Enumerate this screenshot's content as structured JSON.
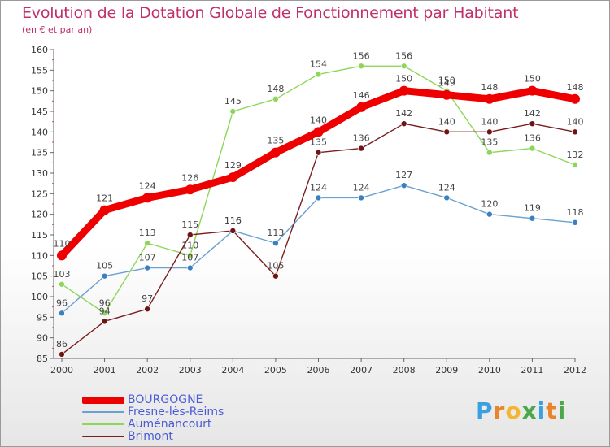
{
  "header": {
    "title": "Evolution de la Dotation Globale de Fonctionnement par Habitant",
    "subtitle": "(en € et par an)"
  },
  "brand": {
    "letters": [
      "P",
      "r",
      "o",
      "x",
      "i",
      "t",
      "i"
    ],
    "colors": [
      "#3aa0e0",
      "#e8842a",
      "#f2b632",
      "#4aa84a",
      "#3aa0e0",
      "#e8842a",
      "#4aa84a"
    ]
  },
  "chart_data": {
    "type": "line",
    "title": "Evolution de la Dotation Globale de Fonctionnement par Habitant",
    "subtitle": "(en € et par an)",
    "xlabel": "",
    "ylabel": "",
    "ylim": [
      85,
      160
    ],
    "yticks": [
      85,
      90,
      95,
      100,
      105,
      110,
      115,
      120,
      125,
      130,
      135,
      140,
      145,
      150,
      155,
      160
    ],
    "grid": false,
    "legend_position": "bottom-left",
    "categories": [
      "2000",
      "2001",
      "2002",
      "2003",
      "2004",
      "2005",
      "2006",
      "2007",
      "2008",
      "2009",
      "2010",
      "2011",
      "2012"
    ],
    "series": [
      {
        "name": "Aumenancourt",
        "label": "Auménancourt",
        "color": "#8ed65a",
        "marker": "#8ed65a",
        "width": 1.4,
        "values": [
          103,
          96,
          113,
          110,
          145,
          148,
          154,
          156,
          156,
          150,
          135,
          136,
          132
        ]
      },
      {
        "name": "Fresne",
        "label": "Fresne-lès-Reims",
        "color": "#6aa1d0",
        "marker": "#3a7fc0",
        "width": 1.4,
        "values": [
          96,
          105,
          107,
          107,
          116,
          113,
          124,
          124,
          127,
          124,
          120,
          119,
          118
        ]
      },
      {
        "name": "Brimont",
        "label": "Brimont",
        "color": "#7a1e1e",
        "marker": "#6e1414",
        "width": 1.4,
        "values": [
          86,
          94,
          97,
          115,
          116,
          105,
          135,
          136,
          142,
          140,
          140,
          142,
          140
        ]
      },
      {
        "name": "BOURGOGNE",
        "label": "BOURGOGNE",
        "color": "#ee0000",
        "marker": "#ee0000",
        "width": 9,
        "values": [
          110,
          121,
          124,
          126,
          129,
          135,
          140,
          146,
          150,
          149,
          148,
          150,
          148
        ]
      }
    ],
    "legend_order": [
      "BOURGOGNE",
      "Fresne-lès-Reims",
      "Auménancourt",
      "Brimont"
    ]
  }
}
